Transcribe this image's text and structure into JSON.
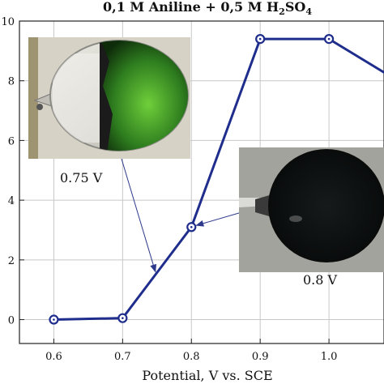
{
  "chart_data": {
    "type": "line",
    "title": "0,1 M Aniline + 0,5 M H",
    "title_sub1": "2",
    "title_mid": "SO",
    "title_sub2": "4",
    "xlabel": "Potential, V vs. SCE",
    "ylabel": "",
    "xlim": [
      0.55,
      1.08
    ],
    "ylim": [
      -0.8,
      10
    ],
    "x_ticks": [
      0.6,
      0.7,
      0.8,
      0.9,
      1.0
    ],
    "x_tick_labels": [
      "0.6",
      "0.7",
      "0.8",
      "0.9",
      "1.0"
    ],
    "y_ticks": [
      0,
      2,
      4,
      6,
      8,
      10
    ],
    "y_tick_labels": [
      "0",
      "2",
      "4",
      "6",
      "8",
      "10"
    ],
    "grid": true,
    "series": [
      {
        "x": [
          0.6,
          0.7,
          0.8,
          0.9,
          1.0,
          1.1
        ],
        "y": [
          0.0,
          0.05,
          3.1,
          9.4,
          9.4,
          8.0
        ],
        "color": "#1f2d8c"
      }
    ],
    "annotations": [
      {
        "text": "0.75 V",
        "points_to": [
          0.75,
          1.6
        ]
      },
      {
        "text": "0.8 V",
        "points_to": [
          0.8,
          3.1
        ]
      }
    ]
  },
  "colors": {
    "line": "#1f2d8c",
    "grid": "#c8c8c8",
    "axis": "#222222"
  }
}
